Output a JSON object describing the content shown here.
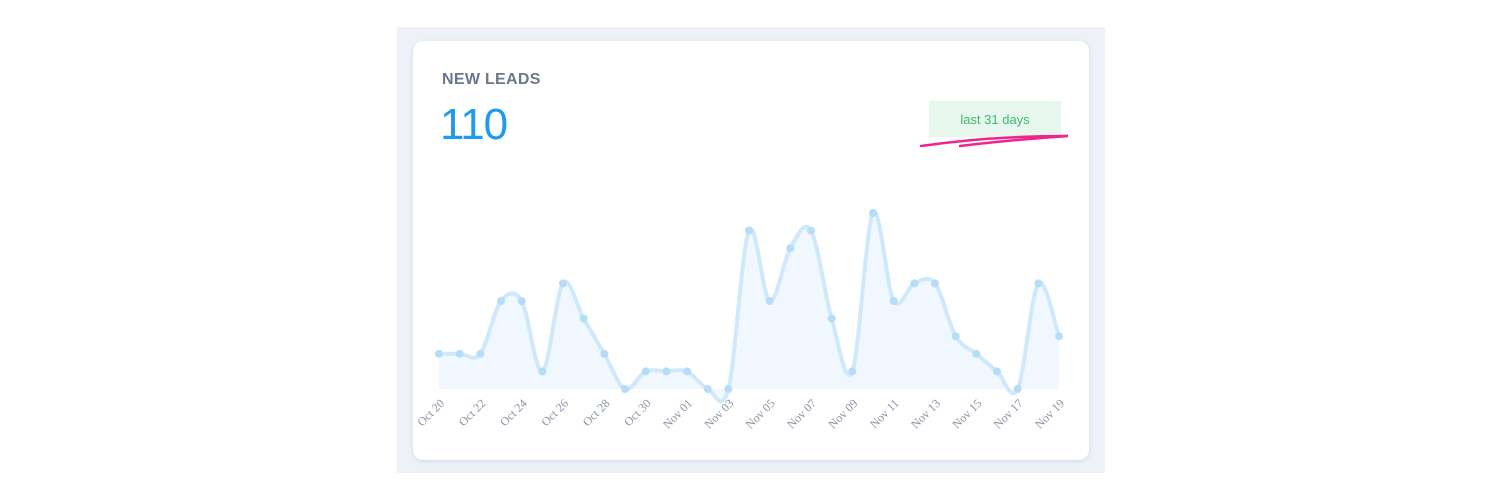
{
  "card": {
    "title": "NEW LEADS",
    "total": "110",
    "badge": "last 31 days"
  },
  "colors": {
    "line": "#cfe9fb",
    "fill": "#f0f7fe",
    "point": "#b5ddf8",
    "total": "#1e9bf0",
    "badge_text": "#3fb872",
    "badge_bg": "#e8f7ee",
    "underline": "#f0248c"
  },
  "chart_data": {
    "type": "area",
    "title": "NEW LEADS",
    "xlabel": "",
    "ylabel": "",
    "ylim": [
      0,
      10
    ],
    "x": [
      "Oct 20",
      "Oct 21",
      "Oct 22",
      "Oct 23",
      "Oct 24",
      "Oct 25",
      "Oct 26",
      "Oct 27",
      "Oct 28",
      "Oct 29",
      "Oct 30",
      "Oct 31",
      "Nov 01",
      "Nov 02",
      "Nov 03",
      "Nov 04",
      "Nov 05",
      "Nov 06",
      "Nov 07",
      "Nov 08",
      "Nov 09",
      "Nov 10",
      "Nov 11",
      "Nov 12",
      "Nov 13",
      "Nov 14",
      "Nov 15",
      "Nov 16",
      "Nov 17",
      "Nov 18",
      "Nov 19"
    ],
    "tick_labels": [
      "Oct 20",
      "Oct 22",
      "Oct 24",
      "Oct 26",
      "Oct 28",
      "Oct 30",
      "Nov 01",
      "Nov 03",
      "Nov 05",
      "Nov 07",
      "Nov 09",
      "Nov 11",
      "Nov 13",
      "Nov 15",
      "Nov 17",
      "Nov 19"
    ],
    "series": [
      {
        "name": "New leads",
        "values": [
          2,
          2,
          2,
          5,
          5,
          1,
          6,
          4,
          2,
          0,
          1,
          1,
          1,
          0,
          0,
          9,
          5,
          8,
          9,
          4,
          1,
          10,
          5,
          6,
          6,
          3,
          2,
          1,
          0,
          6,
          3
        ]
      }
    ],
    "grid": false
  }
}
